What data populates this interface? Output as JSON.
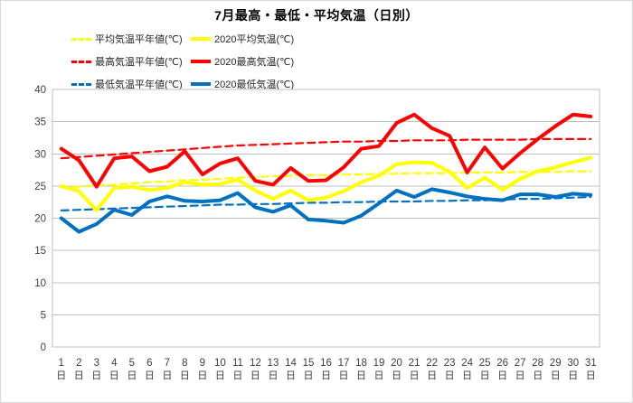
{
  "chart_data": {
    "type": "line",
    "title": "7月最高・最低・平均気温（日別）",
    "xlabel": "",
    "ylabel": "",
    "x_categories": [
      "1",
      "2",
      "3",
      "4",
      "5",
      "6",
      "7",
      "8",
      "9",
      "10",
      "11",
      "12",
      "13",
      "14",
      "15",
      "16",
      "17",
      "18",
      "19",
      "20",
      "21",
      "22",
      "23",
      "24",
      "25",
      "26",
      "27",
      "28",
      "29",
      "30",
      "31"
    ],
    "x_unit_suffix": "日",
    "y_ticks": [
      "0",
      "5",
      "10",
      "15",
      "20",
      "25",
      "30",
      "35",
      "40"
    ],
    "ylim": [
      0,
      40
    ],
    "grid": "horizontal",
    "legend_position": "top-left",
    "axis_color": "#bfbfbf",
    "tick_label_color": "#404040",
    "series": [
      {
        "name": "平均気温平年値(℃)",
        "color": "#ffff00",
        "style": "dashed",
        "values": [
          24.8,
          24.9,
          25.1,
          25.2,
          25.4,
          25.6,
          25.7,
          25.9,
          26.0,
          26.1,
          26.3,
          26.4,
          26.5,
          26.6,
          26.7,
          26.7,
          26.8,
          26.8,
          26.9,
          26.9,
          27.0,
          27.0,
          27.0,
          27.1,
          27.1,
          27.1,
          27.2,
          27.2,
          27.2,
          27.3,
          27.3
        ]
      },
      {
        "name": "2020平均気温(℃)",
        "color": "#ffff00",
        "style": "solid",
        "values": [
          25.0,
          24.2,
          21.2,
          24.7,
          24.9,
          24.4,
          24.7,
          25.6,
          25.2,
          25.3,
          26.0,
          24.3,
          23.0,
          24.3,
          22.8,
          23.2,
          24.2,
          25.6,
          26.6,
          28.4,
          28.7,
          28.6,
          27.2,
          24.7,
          26.3,
          24.4,
          26.1,
          27.3,
          27.9,
          28.7,
          29.4
        ]
      },
      {
        "name": "最高気温平年値(℃)",
        "color": "#ff0000",
        "style": "dashed",
        "values": [
          29.3,
          29.5,
          29.7,
          29.9,
          30.1,
          30.3,
          30.5,
          30.7,
          30.9,
          31.1,
          31.3,
          31.4,
          31.5,
          31.6,
          31.7,
          31.8,
          31.9,
          31.9,
          32.0,
          32.0,
          32.1,
          32.1,
          32.1,
          32.2,
          32.2,
          32.2,
          32.2,
          32.3,
          32.3,
          32.3,
          32.3
        ]
      },
      {
        "name": "2020最高気温(℃)",
        "color": "#ff0000",
        "style": "solid",
        "values": [
          30.8,
          29.0,
          24.9,
          29.3,
          29.6,
          27.3,
          28.0,
          30.4,
          26.8,
          28.5,
          29.3,
          25.8,
          25.2,
          27.8,
          25.8,
          25.9,
          27.9,
          30.8,
          31.2,
          34.8,
          36.1,
          34.0,
          32.8,
          27.1,
          31.0,
          27.7,
          30.1,
          32.3,
          34.3,
          36.1,
          35.8
        ]
      },
      {
        "name": "最低気温平年値(℃)",
        "color": "#0070c0",
        "style": "dashed",
        "values": [
          21.2,
          21.3,
          21.4,
          21.5,
          21.6,
          21.7,
          21.8,
          21.9,
          22.0,
          22.1,
          22.1,
          22.2,
          22.2,
          22.3,
          22.4,
          22.4,
          22.5,
          22.5,
          22.6,
          22.6,
          22.6,
          22.7,
          22.7,
          22.8,
          22.8,
          22.9,
          23.0,
          23.0,
          23.1,
          23.2,
          23.3
        ]
      },
      {
        "name": "2020最低気温(℃)",
        "color": "#0070c0",
        "style": "solid",
        "values": [
          20.0,
          17.9,
          19.1,
          21.3,
          20.5,
          22.6,
          23.4,
          22.7,
          22.6,
          22.8,
          23.9,
          21.7,
          21.0,
          22.0,
          19.8,
          19.6,
          19.3,
          20.4,
          22.3,
          24.3,
          23.3,
          24.5,
          24.0,
          23.4,
          23.0,
          22.8,
          23.7,
          23.7,
          23.3,
          23.8,
          23.6
        ]
      }
    ]
  }
}
